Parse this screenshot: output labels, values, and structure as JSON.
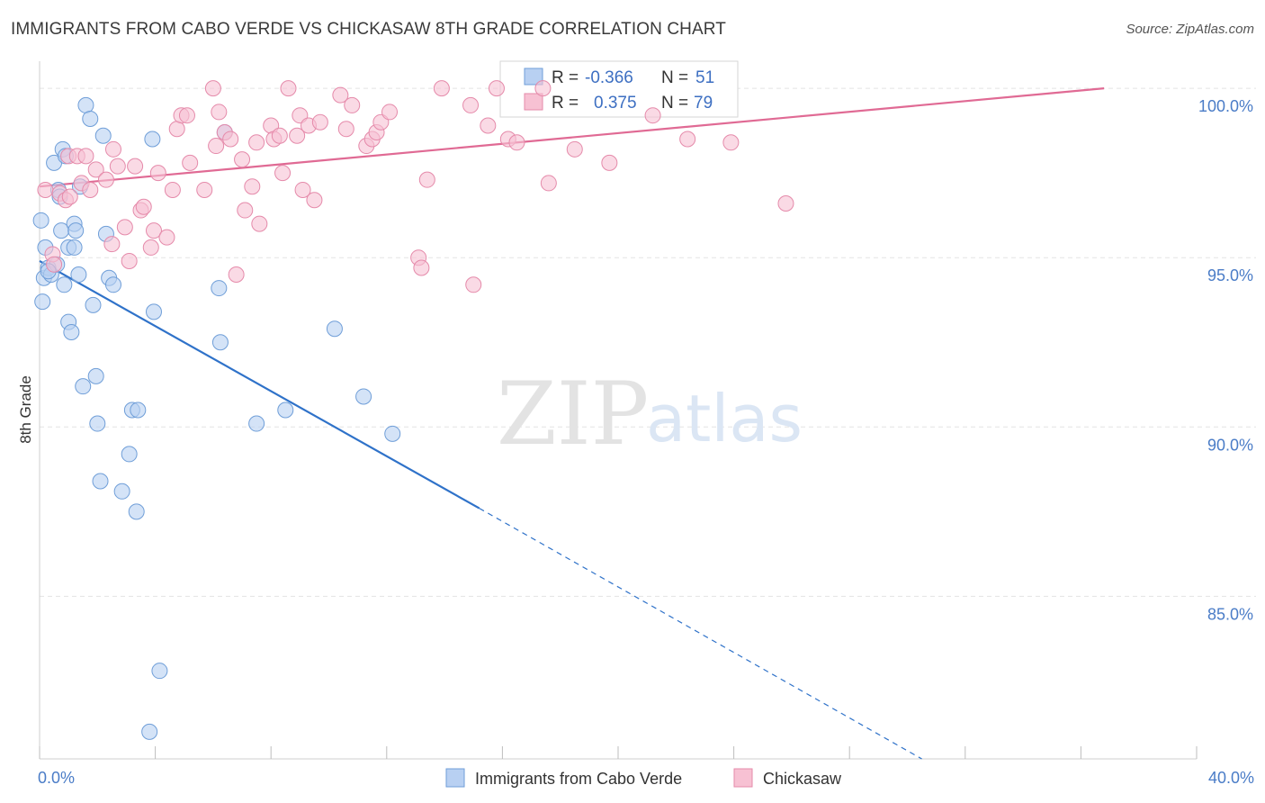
{
  "header": {
    "title": "IMMIGRANTS FROM CABO VERDE VS CHICKASAW 8TH GRADE CORRELATION CHART",
    "source": "Source: ZipAtlas.com"
  },
  "watermark": {
    "zip": "ZIP",
    "atlas": "atlas"
  },
  "legend": {
    "r_label": "R =",
    "n_label": "N =",
    "rows": [
      {
        "r": "-0.366",
        "n": "51"
      },
      {
        "r": "0.375",
        "n": "79"
      }
    ]
  },
  "colors": {
    "blue_fill": "#b8d0f2",
    "blue_stroke": "#6f9ed8",
    "blue_line": "#2f72c9",
    "pink_fill": "#f7c1d3",
    "pink_stroke": "#e58aaa",
    "pink_line": "#e06a94",
    "grid": "#e3e3e3"
  },
  "chart_data": {
    "type": "scatter",
    "title": "IMMIGRANTS FROM CABO VERDE VS CHICKASAW 8TH GRADE CORRELATION CHART",
    "xlabel": "",
    "ylabel": "8th Grade",
    "xlim": [
      0,
      40
    ],
    "ylim": [
      80.2,
      100.8
    ],
    "x_tick_labels": [
      {
        "value": 0,
        "label": "0.0%"
      },
      {
        "value": 40,
        "label": "40.0%"
      }
    ],
    "x_tick_marks": [
      0,
      4,
      8,
      12,
      16,
      20,
      24,
      28,
      32,
      36,
      40
    ],
    "y_ticks": [
      {
        "value": 85,
        "label": "85.0%"
      },
      {
        "value": 90,
        "label": "90.0%"
      },
      {
        "value": 95,
        "label": "95.0%"
      },
      {
        "value": 100,
        "label": "100.0%"
      }
    ],
    "series": [
      {
        "name": "Immigrants from Cabo Verde",
        "color": "blue",
        "points": [
          [
            0.05,
            96.1
          ],
          [
            0.1,
            93.7
          ],
          [
            0.15,
            94.4
          ],
          [
            0.2,
            95.3
          ],
          [
            0.3,
            94.7
          ],
          [
            0.4,
            94.5
          ],
          [
            0.5,
            97.8
          ],
          [
            0.6,
            94.8
          ],
          [
            0.65,
            97.0
          ],
          [
            0.7,
            96.8
          ],
          [
            0.75,
            95.8
          ],
          [
            0.8,
            98.2
          ],
          [
            0.85,
            94.2
          ],
          [
            0.9,
            98.0
          ],
          [
            1.0,
            95.3
          ],
          [
            1.0,
            93.1
          ],
          [
            1.1,
            92.8
          ],
          [
            1.2,
            96.0
          ],
          [
            1.25,
            95.8
          ],
          [
            1.2,
            95.3
          ],
          [
            1.35,
            94.5
          ],
          [
            1.4,
            97.1
          ],
          [
            1.5,
            91.2
          ],
          [
            1.6,
            99.5
          ],
          [
            1.75,
            99.1
          ],
          [
            1.85,
            93.6
          ],
          [
            1.95,
            91.5
          ],
          [
            2.0,
            90.1
          ],
          [
            2.1,
            88.4
          ],
          [
            2.2,
            98.6
          ],
          [
            2.3,
            95.7
          ],
          [
            2.4,
            94.4
          ],
          [
            2.55,
            94.2
          ],
          [
            2.85,
            88.1
          ],
          [
            3.1,
            89.2
          ],
          [
            3.2,
            90.5
          ],
          [
            3.4,
            90.5
          ],
          [
            3.35,
            87.5
          ],
          [
            3.8,
            81.0
          ],
          [
            3.9,
            98.5
          ],
          [
            3.95,
            93.4
          ],
          [
            4.15,
            82.8
          ],
          [
            6.2,
            94.1
          ],
          [
            6.25,
            92.5
          ],
          [
            6.4,
            98.7
          ],
          [
            7.5,
            90.1
          ],
          [
            8.5,
            90.5
          ],
          [
            10.2,
            92.9
          ],
          [
            11.2,
            90.9
          ],
          [
            12.2,
            89.8
          ],
          [
            0.3,
            94.6
          ]
        ],
        "trend": {
          "solid": [
            [
              0,
              94.9
            ],
            [
              15.2,
              87.6
            ]
          ],
          "dashed": [
            [
              15.2,
              87.6
            ],
            [
              30.5,
              80.2
            ]
          ]
        }
      },
      {
        "name": "Chickasaw",
        "color": "pink",
        "points": [
          [
            0.2,
            97.0
          ],
          [
            0.45,
            95.1
          ],
          [
            0.5,
            94.8
          ],
          [
            0.7,
            96.9
          ],
          [
            0.9,
            96.7
          ],
          [
            1.0,
            98.0
          ],
          [
            1.05,
            96.8
          ],
          [
            1.3,
            98.0
          ],
          [
            1.45,
            97.2
          ],
          [
            1.6,
            98.0
          ],
          [
            1.75,
            97.0
          ],
          [
            1.95,
            97.6
          ],
          [
            2.3,
            97.3
          ],
          [
            2.5,
            95.4
          ],
          [
            2.55,
            98.2
          ],
          [
            2.7,
            97.7
          ],
          [
            2.95,
            95.9
          ],
          [
            3.1,
            94.9
          ],
          [
            3.3,
            97.7
          ],
          [
            3.5,
            96.4
          ],
          [
            3.6,
            96.5
          ],
          [
            3.85,
            95.3
          ],
          [
            3.95,
            95.8
          ],
          [
            4.1,
            97.5
          ],
          [
            4.4,
            95.6
          ],
          [
            4.6,
            97.0
          ],
          [
            4.75,
            98.8
          ],
          [
            4.9,
            99.2
          ],
          [
            5.1,
            99.2
          ],
          [
            5.2,
            97.8
          ],
          [
            5.7,
            97.0
          ],
          [
            6.0,
            100.0
          ],
          [
            6.1,
            98.3
          ],
          [
            6.2,
            99.3
          ],
          [
            6.4,
            98.7
          ],
          [
            6.6,
            98.5
          ],
          [
            6.8,
            94.5
          ],
          [
            7.0,
            97.9
          ],
          [
            7.1,
            96.4
          ],
          [
            7.35,
            97.1
          ],
          [
            7.5,
            98.4
          ],
          [
            7.6,
            96.0
          ],
          [
            8.0,
            98.9
          ],
          [
            8.1,
            98.5
          ],
          [
            8.3,
            98.6
          ],
          [
            8.4,
            97.5
          ],
          [
            8.6,
            100.0
          ],
          [
            8.9,
            98.6
          ],
          [
            9.0,
            99.2
          ],
          [
            9.1,
            97.0
          ],
          [
            9.3,
            98.9
          ],
          [
            9.5,
            96.7
          ],
          [
            9.7,
            99.0
          ],
          [
            10.4,
            99.8
          ],
          [
            10.6,
            98.8
          ],
          [
            10.8,
            99.5
          ],
          [
            11.3,
            98.3
          ],
          [
            11.5,
            98.5
          ],
          [
            11.65,
            98.7
          ],
          [
            11.8,
            99.0
          ],
          [
            12.1,
            99.3
          ],
          [
            13.1,
            95.0
          ],
          [
            13.2,
            94.7
          ],
          [
            13.4,
            97.3
          ],
          [
            13.9,
            100.0
          ],
          [
            14.9,
            99.5
          ],
          [
            15.0,
            94.2
          ],
          [
            15.5,
            98.9
          ],
          [
            15.8,
            100.0
          ],
          [
            16.2,
            98.5
          ],
          [
            16.5,
            98.4
          ],
          [
            17.4,
            100.0
          ],
          [
            17.6,
            97.2
          ],
          [
            18.5,
            98.2
          ],
          [
            19.7,
            97.8
          ],
          [
            21.2,
            99.2
          ],
          [
            22.4,
            98.5
          ],
          [
            23.9,
            98.4
          ],
          [
            25.8,
            96.6
          ]
        ],
        "trend": {
          "solid": [
            [
              0,
              97.1
            ],
            [
              36.8,
              100.0
            ]
          ]
        }
      }
    ]
  }
}
